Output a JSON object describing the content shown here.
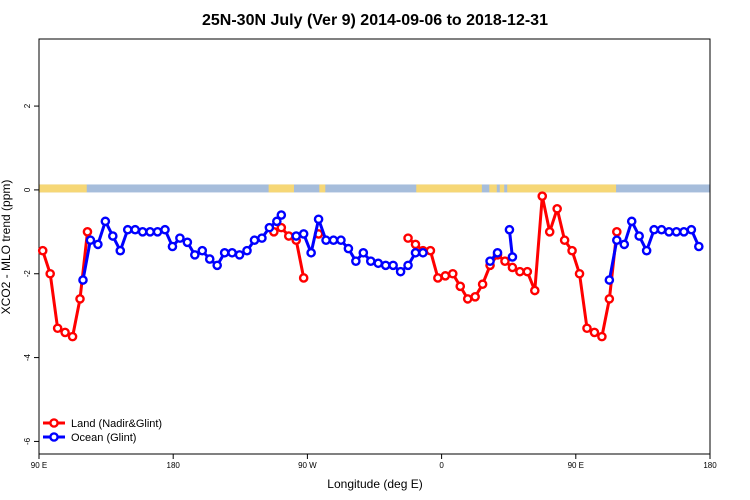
{
  "chart_data": {
    "type": "line",
    "title": "25N-30N July (Ver 9)   2014-09-06 to 2018-12-31",
    "xlabel": "Longitude (deg E)",
    "ylabel": "XCO2 - MLO trend (ppm)",
    "xlim": [
      90,
      540
    ],
    "ylim": [
      -6.3,
      3.6
    ],
    "x_ticks": [
      {
        "value": 90,
        "label": "90 E"
      },
      {
        "value": 180,
        "label": "180"
      },
      {
        "value": 270,
        "label": "90 W"
      },
      {
        "value": 360,
        "label": "0"
      },
      {
        "value": 450,
        "label": "90 E"
      },
      {
        "value": 540,
        "label": "180"
      }
    ],
    "y_ticks": [
      {
        "value": 2,
        "label": "2"
      },
      {
        "value": 0,
        "label": "0"
      },
      {
        "value": -2,
        "label": "-2"
      },
      {
        "value": -4,
        "label": "-4"
      },
      {
        "value": -6,
        "label": "-6"
      }
    ],
    "surface_band": {
      "y_range": [
        -0.06,
        0.13
      ],
      "land_color": "#f6d776",
      "ocean_color": "#a6bddb",
      "land_segments": [
        [
          90,
          122
        ],
        [
          244,
          261
        ],
        [
          278,
          282
        ],
        [
          343,
          387
        ],
        [
          392,
          397
        ],
        [
          399,
          402
        ],
        [
          404,
          477
        ],
        [
          540,
          540
        ]
      ]
    },
    "legend_position": "bottom-left",
    "series": [
      {
        "name": "Land (Nadir&Glint)",
        "color": "#ff0000",
        "points": [
          [
            92.5,
            -1.45
          ],
          [
            97.5,
            -2.0
          ],
          [
            102.5,
            -3.3
          ],
          [
            107.5,
            -3.4
          ],
          [
            112.5,
            -3.5
          ],
          [
            117.5,
            -2.6
          ],
          [
            122.5,
            -1.0
          ],
          null,
          [
            247.5,
            -1.0
          ],
          [
            252.5,
            -0.9
          ],
          [
            257.5,
            -1.1
          ],
          [
            262.5,
            -1.2
          ],
          [
            267.5,
            -2.1
          ],
          null,
          [
            277.5,
            -1.05
          ],
          null,
          [
            337.5,
            -1.15
          ],
          [
            342.5,
            -1.3
          ],
          [
            347.5,
            -1.45
          ],
          [
            352.5,
            -1.45
          ],
          [
            357.5,
            -2.1
          ],
          [
            362.5,
            -2.05
          ],
          [
            367.5,
            -2.0
          ],
          [
            372.5,
            -2.3
          ],
          [
            377.5,
            -2.6
          ],
          [
            382.5,
            -2.55
          ],
          [
            387.5,
            -2.25
          ],
          [
            392.5,
            -1.8
          ],
          [
            397.5,
            -1.55
          ],
          [
            402.5,
            -1.7
          ],
          [
            407.5,
            -1.85
          ],
          [
            412.5,
            -1.95
          ],
          [
            417.5,
            -1.95
          ],
          [
            422.5,
            -2.4
          ],
          [
            427.5,
            -0.15
          ],
          [
            432.5,
            -1.0
          ],
          [
            437.5,
            -0.45
          ],
          [
            442.5,
            -1.2
          ],
          [
            447.5,
            -1.45
          ],
          [
            452.5,
            -2.0
          ],
          [
            457.5,
            -3.3
          ],
          [
            462.5,
            -3.4
          ],
          [
            467.5,
            -3.5
          ],
          [
            472.5,
            -2.6
          ],
          [
            477.5,
            -1.0
          ]
        ]
      },
      {
        "name": "Ocean (Glint)",
        "color": "#0000ff",
        "points": [
          [
            119.5,
            -2.15
          ],
          [
            124.5,
            -1.2
          ],
          [
            129.5,
            -1.3
          ],
          [
            134.5,
            -0.75
          ],
          [
            139.5,
            -1.1
          ],
          [
            144.5,
            -1.45
          ],
          [
            149.5,
            -0.95
          ],
          [
            154.5,
            -0.95
          ],
          [
            159.5,
            -1.0
          ],
          [
            164.5,
            -1.0
          ],
          [
            169.5,
            -1.0
          ],
          [
            174.5,
            -0.95
          ],
          [
            179.5,
            -1.35
          ],
          [
            184.5,
            -1.15
          ],
          [
            189.5,
            -1.25
          ],
          [
            194.5,
            -1.55
          ],
          [
            199.5,
            -1.45
          ],
          [
            204.5,
            -1.65
          ],
          [
            209.5,
            -1.8
          ],
          [
            214.5,
            -1.5
          ],
          [
            219.5,
            -1.5
          ],
          [
            224.5,
            -1.55
          ],
          [
            229.5,
            -1.45
          ],
          [
            234.5,
            -1.2
          ],
          [
            239.5,
            -1.15
          ],
          [
            244.5,
            -0.9
          ],
          [
            249.5,
            -0.75
          ],
          [
            252.5,
            -0.6
          ],
          null,
          [
            262.5,
            -1.1
          ],
          [
            267.5,
            -1.05
          ],
          [
            272.5,
            -1.5
          ],
          [
            277.5,
            -0.7
          ],
          [
            282.5,
            -1.2
          ],
          [
            287.5,
            -1.2
          ],
          [
            292.5,
            -1.2
          ],
          [
            297.5,
            -1.4
          ],
          [
            302.5,
            -1.7
          ],
          [
            307.5,
            -1.5
          ],
          [
            312.5,
            -1.7
          ],
          [
            317.5,
            -1.75
          ],
          [
            322.5,
            -1.8
          ],
          [
            327.5,
            -1.8
          ],
          [
            332.5,
            -1.95
          ],
          [
            337.5,
            -1.8
          ],
          [
            342.5,
            -1.5
          ],
          [
            347.5,
            -1.5
          ],
          null,
          [
            392.5,
            -1.7
          ],
          [
            397.5,
            -1.5
          ],
          null,
          [
            405.5,
            -0.95
          ],
          [
            407.5,
            -1.6
          ],
          null,
          [
            472.5,
            -2.15
          ],
          [
            477.5,
            -1.2
          ],
          [
            482.5,
            -1.3
          ],
          [
            487.5,
            -0.75
          ],
          [
            492.5,
            -1.1
          ],
          [
            497.5,
            -1.45
          ],
          [
            502.5,
            -0.95
          ],
          [
            507.5,
            -0.95
          ],
          [
            512.5,
            -1.0
          ],
          [
            517.5,
            -1.0
          ],
          [
            522.5,
            -1.0
          ],
          [
            527.5,
            -0.95
          ],
          [
            532.5,
            -1.35
          ]
        ]
      }
    ]
  }
}
